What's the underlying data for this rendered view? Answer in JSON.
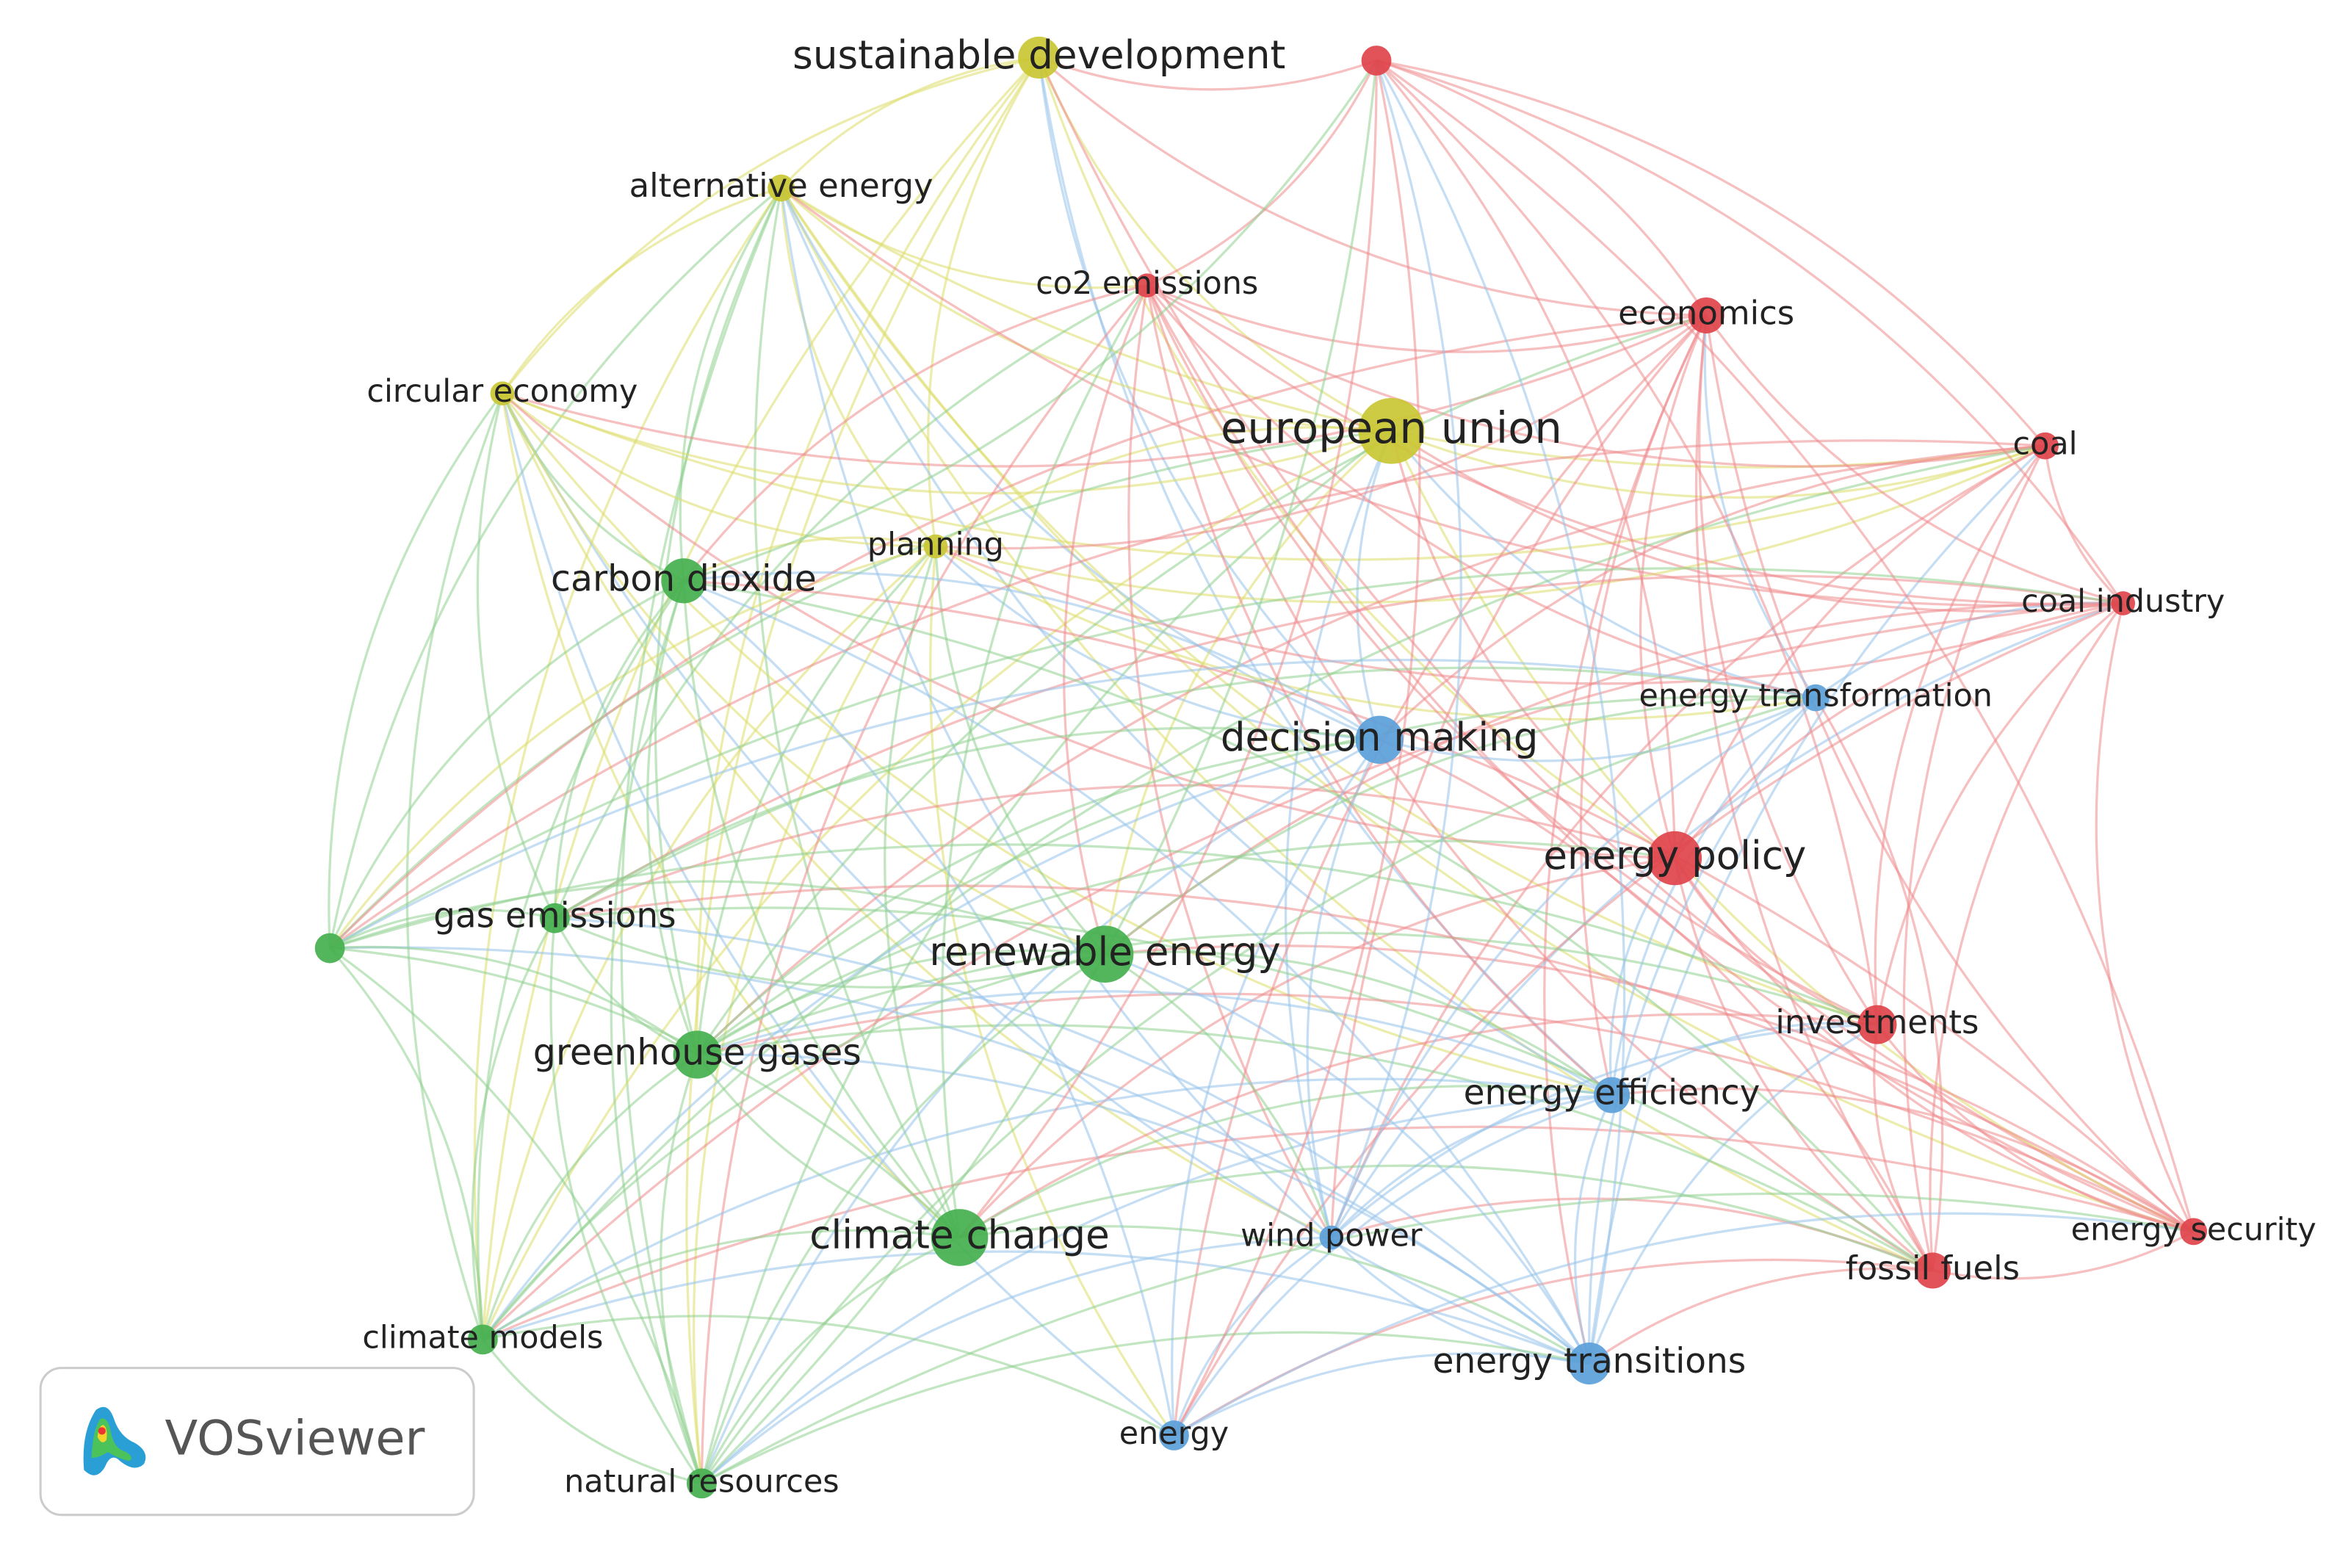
{
  "nodes": [
    {
      "label": "sustainable development"
    },
    {
      "label": "alternative energy"
    },
    {
      "label": "circular economy"
    },
    {
      "label": "european union"
    },
    {
      "label": "planning"
    },
    {
      "label": "co2 emissions"
    },
    {
      "label": "economics"
    },
    {
      "label": "coal"
    },
    {
      "label": "coal industry"
    },
    {
      "label": "energy policy"
    },
    {
      "label": "investments"
    },
    {
      "label": "fossil fuels"
    },
    {
      "label": "energy security"
    },
    {
      "label": "decision making"
    },
    {
      "label": "energy transformation"
    },
    {
      "label": "energy efficiency"
    },
    {
      "label": "wind power"
    },
    {
      "label": "energy transitions"
    },
    {
      "label": "energy"
    },
    {
      "label": "carbon dioxide"
    },
    {
      "label": "gas emissions"
    },
    {
      "label": "renewable energy"
    },
    {
      "label": "greenhouse gases"
    },
    {
      "label": "climate change"
    },
    {
      "label": "climate models"
    },
    {
      "label": "natural resources"
    }
  ],
  "logo": {
    "text": "VOSviewer"
  }
}
